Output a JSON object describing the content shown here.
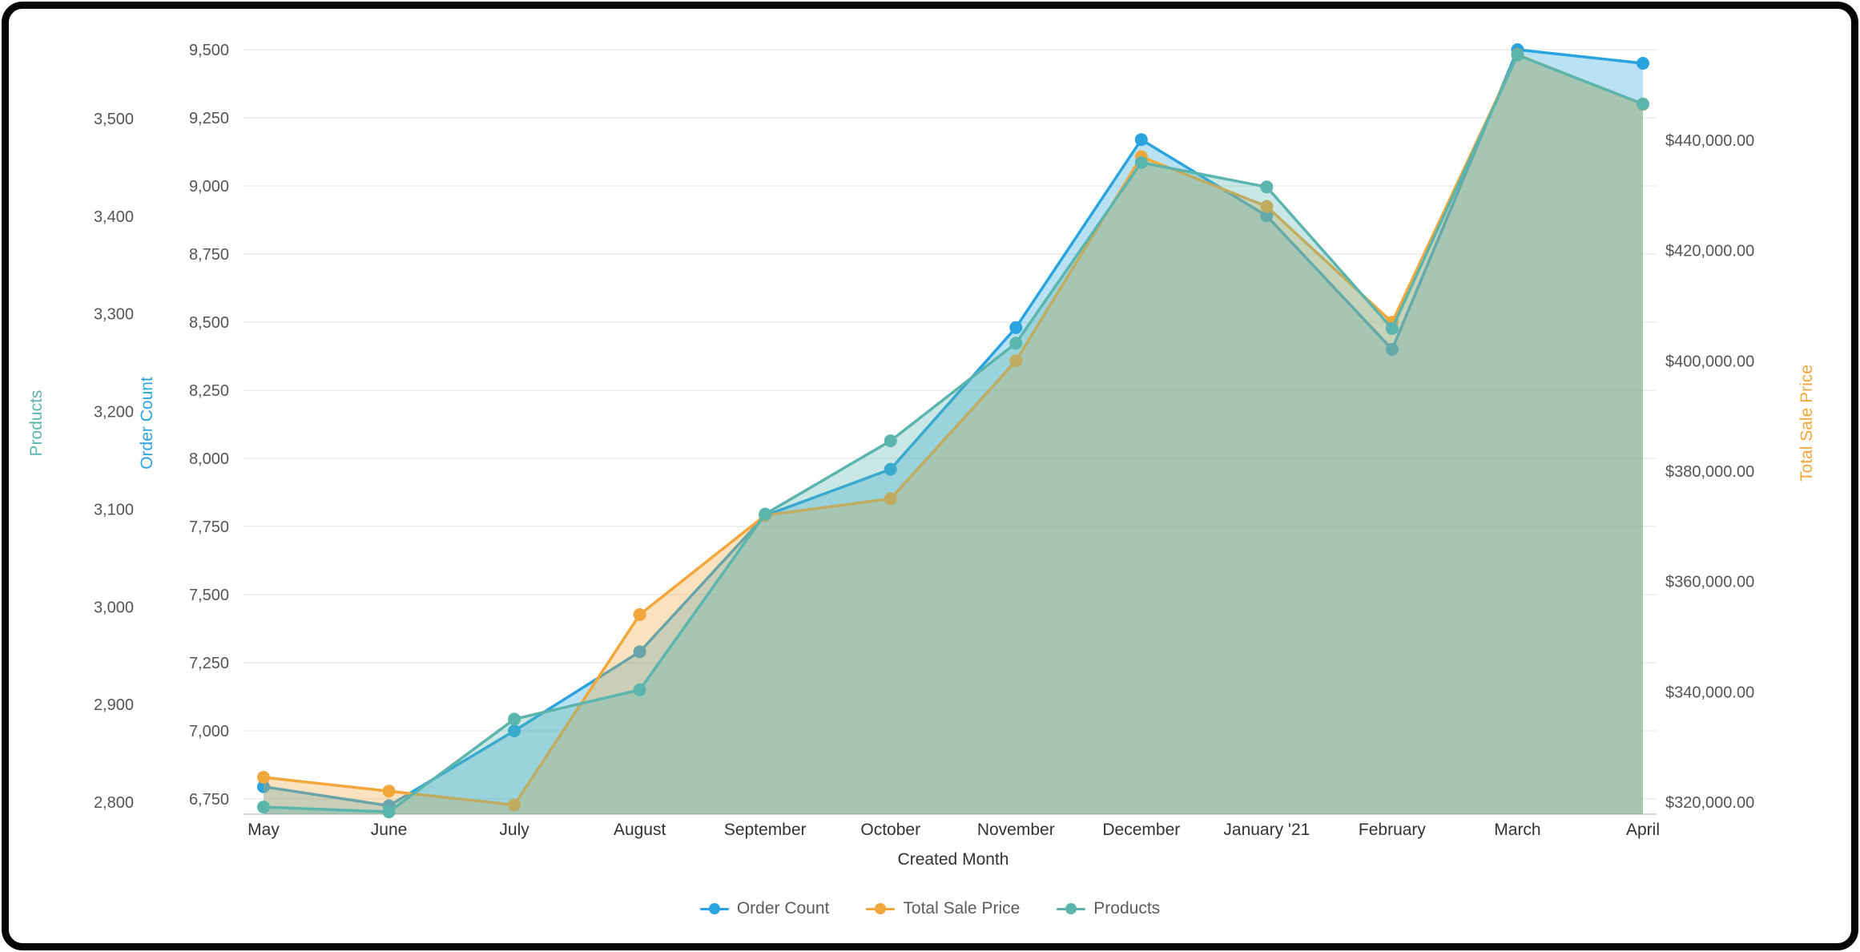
{
  "frame": {
    "border_color": "#060606",
    "background": "#ffffff"
  },
  "chart_data": {
    "type": "area",
    "title": "",
    "xlabel": "Created Month",
    "categories": [
      "May",
      "June",
      "July",
      "August",
      "September",
      "October",
      "November",
      "December",
      "January '21",
      "February",
      "March",
      "April"
    ],
    "series": [
      {
        "name": "Order Count",
        "axis": "order_count",
        "color": "#2AA3DF",
        "values": [
          6795,
          6725,
          7000,
          7290,
          7790,
          7960,
          8480,
          9170,
          8890,
          8400,
          9500,
          9450
        ]
      },
      {
        "name": "Total Sale Price",
        "axis": "total_sale_price",
        "color": "#F1A73B",
        "values": [
          324500,
          322000,
          319500,
          354000,
          372000,
          375000,
          400000,
          437000,
          428000,
          407000,
          455500,
          446500
        ]
      },
      {
        "name": "Products",
        "axis": "products",
        "color": "#5BB5AD",
        "values": [
          2795,
          2790,
          2885,
          2915,
          3095,
          3170,
          3270,
          3455,
          3430,
          3285,
          3565,
          3515
        ]
      }
    ],
    "axes": {
      "products": {
        "label": "Products",
        "side": "left-outer",
        "color": "#5BB5AD",
        "ticks": [
          2800,
          2900,
          3000,
          3100,
          3200,
          3300,
          3400,
          3500
        ],
        "tick_labels": [
          "2,800",
          "2,900",
          "3,000",
          "3,100",
          "3,200",
          "3,300",
          "3,400",
          "3,500"
        ]
      },
      "order_count": {
        "label": "Order Count",
        "side": "left-inner",
        "color": "#2AA3DF",
        "ticks": [
          6750,
          7000,
          7250,
          7500,
          7750,
          8000,
          8250,
          8500,
          8750,
          9000,
          9250,
          9500
        ],
        "tick_labels": [
          "6,750",
          "7,000",
          "7,250",
          "7,500",
          "7,750",
          "8,000",
          "8,250",
          "8,500",
          "8,750",
          "9,000",
          "9,250",
          "9,500"
        ]
      },
      "total_sale_price": {
        "label": "Total Sale Price",
        "side": "right",
        "color": "#F1A73B",
        "ticks": [
          320000,
          340000,
          360000,
          380000,
          400000,
          420000,
          440000
        ],
        "tick_labels": [
          "$320,000.00",
          "$340,000.00",
          "$360,000.00",
          "$380,000.00",
          "$400,000.00",
          "$420,000.00",
          "$440,000.00"
        ]
      }
    },
    "legend": {
      "position": "bottom",
      "items": [
        "Order Count",
        "Total Sale Price",
        "Products"
      ]
    },
    "grid": true,
    "x_axis_label": "Created Month"
  }
}
